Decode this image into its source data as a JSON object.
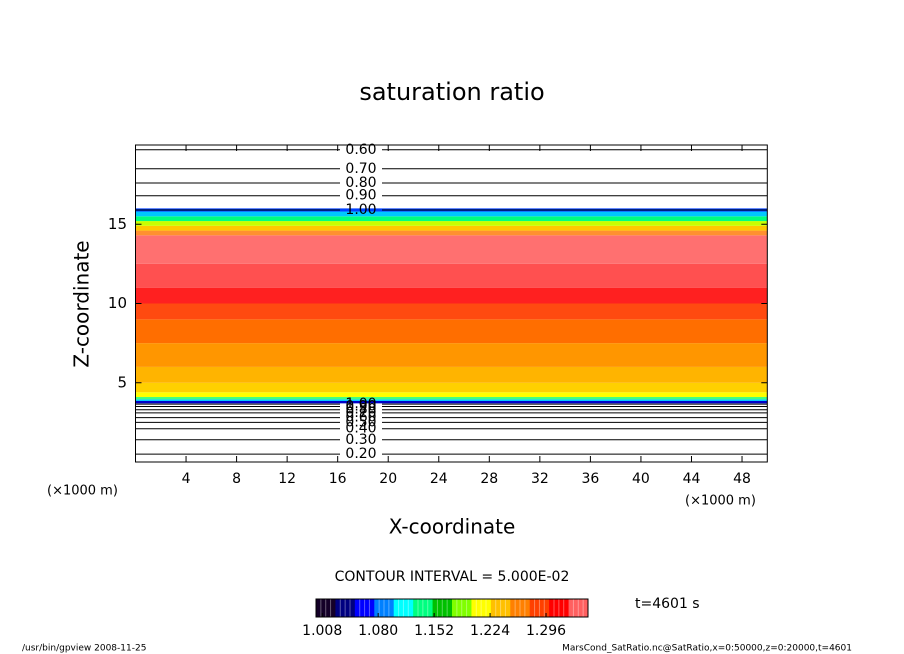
{
  "chart_data": {
    "type": "contour",
    "title": "saturation ratio",
    "xlabel": "X-coordinate",
    "ylabel": "Z-coordinate",
    "x_unit_left": "(×1000 m)",
    "x_unit_right": "(×1000 m)",
    "xlim": [
      0,
      50
    ],
    "ylim": [
      0,
      20
    ],
    "xticks": [
      4,
      8,
      12,
      16,
      20,
      24,
      28,
      32,
      36,
      40,
      44,
      48
    ],
    "yticks": [
      5,
      10,
      15
    ],
    "bands": [
      {
        "z": [
          3.7,
          3.85
        ],
        "color": "#0000c8"
      },
      {
        "z": [
          3.85,
          3.95
        ],
        "color": "#00c8ff"
      },
      {
        "z": [
          3.95,
          4.1
        ],
        "color": "#40ff80"
      },
      {
        "z": [
          4.1,
          4.4
        ],
        "color": "#ffff00"
      },
      {
        "z": [
          4.4,
          5
        ],
        "color": "#ffd000"
      },
      {
        "z": [
          5,
          6
        ],
        "color": "#ffb400"
      },
      {
        "z": [
          6,
          7.5
        ],
        "color": "#ff9600"
      },
      {
        "z": [
          7.5,
          9
        ],
        "color": "#ff6e00"
      },
      {
        "z": [
          9,
          10
        ],
        "color": "#ff4a10"
      },
      {
        "z": [
          10,
          11
        ],
        "color": "#ff2020"
      },
      {
        "z": [
          11,
          12.5
        ],
        "color": "#ff5050"
      },
      {
        "z": [
          12.5,
          14.3
        ],
        "color": "#ff7070"
      },
      {
        "z": [
          14.3,
          14.6
        ],
        "color": "#ff9030"
      },
      {
        "z": [
          14.6,
          14.9
        ],
        "color": "#ffc800"
      },
      {
        "z": [
          14.9,
          15.2
        ],
        "color": "#c8ff00"
      },
      {
        "z": [
          15.2,
          15.5
        ],
        "color": "#00ff80"
      },
      {
        "z": [
          15.5,
          15.8
        ],
        "color": "#00c8ff"
      },
      {
        "z": [
          15.8,
          16
        ],
        "color": "#0040ff"
      }
    ],
    "contour_lines": [
      {
        "level": 0.6,
        "label": "0.60",
        "z": 19.7
      },
      {
        "level": 0.7,
        "label": "0.70",
        "z": 18.5
      },
      {
        "level": 0.8,
        "label": "0.80",
        "z": 17.6
      },
      {
        "level": 0.9,
        "label": "0.90",
        "z": 16.8
      },
      {
        "level": 1,
        "label": "1.00",
        "z": 15.9
      },
      {
        "level": 1,
        "label": "1.00",
        "z": 3.65
      },
      {
        "level": 0.9,
        "label": "0.90",
        "z": 3.5
      },
      {
        "level": 0.8,
        "label": "0.80",
        "z": 3.3
      },
      {
        "level": 0.7,
        "label": "0.70",
        "z": 3.1
      },
      {
        "level": 0.6,
        "label": "0.60",
        "z": 2.8
      },
      {
        "level": 0.5,
        "label": "0.50",
        "z": 2.5
      },
      {
        "level": 0.4,
        "label": "0.40",
        "z": 2.1
      },
      {
        "level": 0.3,
        "label": "0.30",
        "z": 1.4
      },
      {
        "level": 0.2,
        "label": "0.20",
        "z": 0.5
      }
    ],
    "contour_interval": "CONTOUR INTERVAL = 5.000E-02",
    "time_label": "t=4601 s",
    "colorbar": {
      "lim": [
        1.0,
        1.35
      ],
      "ticks": [
        1.008,
        {
          "value": 1.08,
          "label": "1.080"
        },
        1.152,
        1.224,
        1.296
      ],
      "colors": [
        "#140028",
        "#000080",
        "#0000ff",
        "#0080ff",
        "#00ffff",
        "#00ff80",
        "#00c000",
        "#80ff00",
        "#ffff00",
        "#ffc000",
        "#ff8000",
        "#ff4000",
        "#ff0000",
        "#ff6060"
      ]
    },
    "footer_left": "/usr/bin/gpview   2008-11-25",
    "footer_right": "MarsCond_SatRatio.nc@SatRatio,x=0:50000,z=0:20000,t=4601"
  }
}
